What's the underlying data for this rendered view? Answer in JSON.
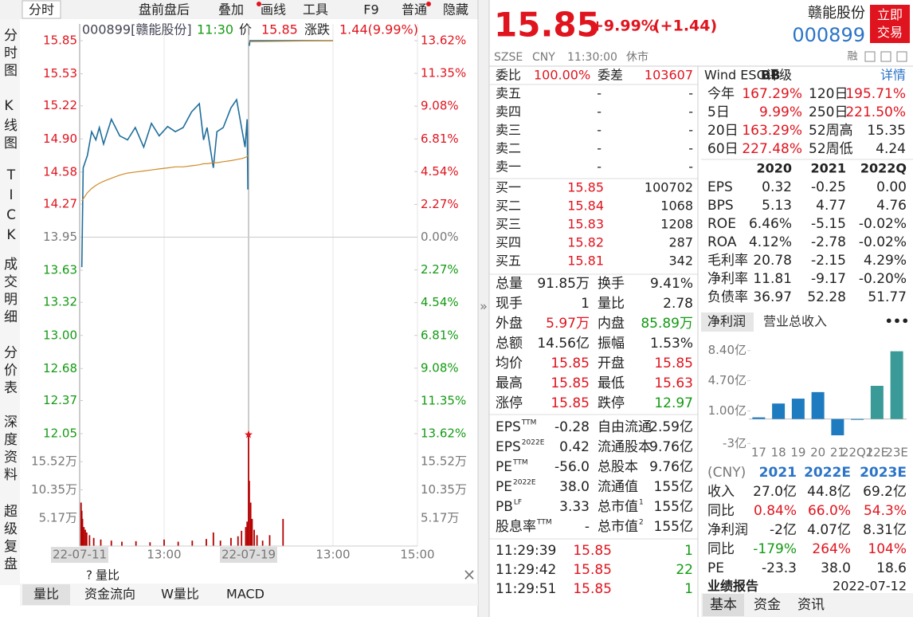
{
  "toolbar": {
    "tab": "分时",
    "buttons": [
      "盘前盘后",
      "叠加",
      "画线",
      "工具",
      "F9",
      "普通",
      "隐藏"
    ]
  },
  "side_tabs": [
    "分时图",
    "K线图",
    "TICK",
    "成交明细",
    "分价表",
    "深度资料",
    "超级复盘"
  ],
  "chart_header": {
    "code": "000899[赣能股份]",
    "time": "11:30",
    "price_label": "价",
    "price": "15.85",
    "change_label": "涨跌",
    "change": "1.44(9.99%)"
  },
  "chart_data": [
    {
      "type": "line",
      "xlim": [
        0,
        480
      ],
      "ylim": [
        12.05,
        15.85
      ],
      "yticks": [
        15.85,
        15.53,
        15.22,
        {
          "value": 14.9,
          "label": "14.90"
        },
        14.58,
        14.27,
        13.95,
        13.63,
        13.32,
        {
          "value": 13,
          "label": "13.00"
        },
        12.68,
        12.37,
        12.05
      ],
      "y2lim": [
        -13.62,
        13.62
      ],
      "y2ticks": [
        {
          "value": 13.62,
          "label": "13.62%"
        },
        {
          "value": 11.35,
          "label": "11.35%"
        },
        {
          "value": 9.08,
          "label": "9.08%"
        },
        {
          "value": 6.81,
          "label": "6.81%"
        },
        {
          "value": 4.54,
          "label": "4.54%"
        },
        {
          "value": 2.27,
          "label": "2.27%"
        },
        {
          "value": 0,
          "label": "0.00%"
        },
        {
          "value": -2.27,
          "label": "2.27%"
        },
        {
          "value": -4.54,
          "label": "4.54%"
        },
        {
          "value": -6.81,
          "label": "6.81%"
        },
        {
          "value": -9.08,
          "label": "9.08%"
        },
        {
          "value": -11.35,
          "label": "11.35%"
        },
        {
          "value": -13.62,
          "label": "13.62%"
        }
      ],
      "xticks": [
        {
          "value": 0,
          "label": "22-07-11"
        },
        {
          "value": 120,
          "label": "13:00"
        },
        {
          "value": 240,
          "label": "22-07-19"
        },
        {
          "value": 360,
          "label": "13:00"
        },
        {
          "value": 480,
          "label": "15:00"
        }
      ],
      "x": [
        3,
        5,
        11,
        17,
        23,
        28,
        34,
        45,
        57,
        68,
        79,
        91,
        102,
        113,
        125,
        136,
        147,
        159,
        170,
        176,
        181,
        190,
        195,
        204,
        215,
        223,
        230,
        235,
        238,
        239,
        240,
        241,
        242,
        360
      ],
      "series": [
        {
          "color": "#1f6e9c",
          "values": [
            13.66,
            14.62,
            14.74,
            14.97,
            14.89,
            15.01,
            14.85,
            15.09,
            14.93,
            14.89,
            15.01,
            14.82,
            15.05,
            14.93,
            15.02,
            14.97,
            15.01,
            15.16,
            15.24,
            14.89,
            15.01,
            14.62,
            14.97,
            15.01,
            15.2,
            15.28,
            15.01,
            14.82,
            15.09,
            14.41,
            null,
            15.8,
            15.85,
            15.85
          ]
        },
        {
          "color": "#d08a2a",
          "values": [
            14.3,
            14.32,
            14.38,
            14.42,
            14.45,
            14.47,
            14.49,
            14.52,
            14.55,
            14.57,
            14.58,
            14.59,
            14.6,
            14.61,
            14.62,
            14.63,
            14.63,
            14.64,
            14.65,
            14.66,
            14.66,
            14.67,
            14.67,
            14.68,
            14.69,
            14.7,
            14.71,
            14.72,
            14.73,
            14.74,
            null,
            15.84,
            15.84,
            15.85
          ]
        }
      ]
    },
    {
      "type": "bar",
      "xlim": [
        0,
        480
      ],
      "ylim": [
        0,
        20.69
      ],
      "color": "#b40000",
      "yticks": [
        {
          "value": 15.52,
          "label": "15.52万"
        },
        {
          "value": 10.35,
          "label": "10.35万"
        },
        {
          "value": 5.17,
          "label": "5.17万"
        }
      ],
      "x": [
        2,
        3,
        4,
        6,
        8,
        10,
        14,
        20,
        30,
        45,
        60,
        80,
        100,
        120,
        140,
        160,
        180,
        190,
        200,
        215,
        225,
        230,
        236,
        238,
        240,
        241,
        243,
        245,
        248,
        252,
        260,
        270,
        289
      ],
      "values": [
        8,
        6.5,
        5,
        3.5,
        3,
        2.5,
        2,
        1.5,
        1.2,
        1,
        0.8,
        0.9,
        0.7,
        1.2,
        0.8,
        1,
        1.3,
        2.5,
        1,
        1.5,
        1.8,
        2.8,
        3.5,
        4.5,
        20.6,
        12,
        8,
        5,
        3,
        2,
        1,
        2,
        5
      ]
    },
    {
      "type": "bar",
      "categories": [
        "17",
        "18",
        "19",
        "20",
        "21",
        "22Q1",
        "22E",
        "23E"
      ],
      "values": [
        0.2,
        1.9,
        2.5,
        3.3,
        -2,
        -0.1,
        4.07,
        8.31
      ],
      "colors": [
        "#1f7bbf",
        "#1f7bbf",
        "#1f7bbf",
        "#1f7bbf",
        "#1f7bbf",
        "#1f7bbf",
        "#3a9a98",
        "#3a9a98"
      ],
      "ylim": [
        -3.85,
        9.35
      ],
      "yticks": [
        {
          "value": 8.4,
          "label": "8.40亿"
        },
        {
          "value": 4.7,
          "label": "4.70亿"
        },
        {
          "value": 1,
          "label": "1.00亿"
        },
        {
          "value": -3,
          "label": "-3亿"
        }
      ]
    }
  ],
  "left_bottom": {
    "help": "?",
    "label": "量比",
    "close": "×",
    "tabs": [
      "量比",
      "资金流向",
      "W量比",
      "MACD"
    ]
  },
  "expand": "»",
  "quote": {
    "price": "15.85",
    "change_pct": "+9.99%",
    "change": "(+1.44)",
    "name": "赣能股份",
    "code": "000899",
    "trade_button": "立即交易",
    "exchange": "SZSE",
    "currency": "CNY",
    "time": "11:30:00",
    "status": "休市",
    "margin": "融"
  },
  "order_book": {
    "ratio_label": "委比",
    "ratio": "100.00%",
    "diff_label": "委差",
    "diff": "103607",
    "asks": [
      [
        "卖五",
        "-",
        "-"
      ],
      [
        "卖四",
        "-",
        "-"
      ],
      [
        "卖三",
        "-",
        "-"
      ],
      [
        "卖二",
        "-",
        "-"
      ],
      [
        "卖一",
        "-",
        "-"
      ]
    ],
    "bids": [
      [
        "买一",
        "15.85",
        "100702"
      ],
      [
        "买二",
        "15.84",
        "1068"
      ],
      [
        "买三",
        "15.83",
        "1208"
      ],
      [
        "买四",
        "15.82",
        "287"
      ],
      [
        "买五",
        "15.81",
        "342"
      ]
    ]
  },
  "stats": [
    [
      "总量",
      "91.85万",
      "换手",
      "9.41%"
    ],
    [
      "现手",
      "1",
      "量比",
      "2.78"
    ],
    [
      "外盘",
      "5.97万",
      "内盘",
      "85.89万"
    ],
    [
      "总额",
      "14.56亿",
      "振幅",
      "1.53%"
    ],
    [
      "均价",
      "15.85",
      "开盘",
      "15.85"
    ],
    [
      "最高",
      "15.85",
      "最低",
      "15.63"
    ],
    [
      "涨停",
      "15.85",
      "跌停",
      "12.97"
    ]
  ],
  "valuation": [
    {
      "label": "EPS",
      "sup": "TTM",
      "value": "-0.28",
      "label2": "自由流通",
      "value2": "2.59亿"
    },
    {
      "label": "EPS",
      "sup": "2022E",
      "value": "0.42",
      "label2": "流通股本",
      "value2": "9.76亿"
    },
    {
      "label": "PE",
      "sup": "TTM",
      "value": "-56.0",
      "label2": "总股本",
      "value2": "9.76亿"
    },
    {
      "label": "PE",
      "sup": "2022E",
      "value": "38.0",
      "label2": "流通值",
      "value2": "155亿"
    },
    {
      "label": "PB",
      "sup": "LF",
      "value": "3.33",
      "label2": "总市值",
      "sup2": "1",
      "value2": "155亿"
    },
    {
      "label": "股息率",
      "sup": "TTM",
      "value": "-",
      "label2": "总市值",
      "sup2": "2",
      "value2": "155亿"
    }
  ],
  "trades": [
    [
      "11:29:39",
      "15.85",
      "1"
    ],
    [
      "11:29:42",
      "15.85",
      "22"
    ],
    [
      "11:29:51",
      "15.85",
      "1"
    ]
  ],
  "esg": {
    "title": "Wind ESG评级",
    "rating": "BB",
    "detail": "详情"
  },
  "returns": [
    [
      "今年",
      "167.29%",
      "120日",
      "195.71%"
    ],
    [
      "5日",
      "9.99%",
      "250日",
      "221.50%"
    ],
    [
      "20日",
      "163.29%",
      "52周高",
      "15.35"
    ],
    [
      "60日",
      "227.48%",
      "52周低",
      "4.24"
    ]
  ],
  "financials": {
    "columns": [
      "2020",
      "2021",
      "2022Q"
    ],
    "rows": [
      [
        "EPS",
        "0.32",
        "-0.25",
        "0.00"
      ],
      [
        "BPS",
        "5.13",
        "4.77",
        "4.76"
      ],
      [
        "ROE",
        "6.46%",
        "-5.15",
        "-0.02%"
      ],
      [
        "ROA",
        "4.12%",
        "-2.78",
        "-0.02%"
      ],
      [
        "毛利率",
        "20.78",
        "-2.15",
        "4.29%"
      ],
      [
        "净利率",
        "11.81",
        "-9.17",
        "-0.20%"
      ],
      [
        "负债率",
        "36.97",
        "52.28",
        "51.77"
      ]
    ]
  },
  "profit_tabs": [
    "净利润",
    "营业总收入"
  ],
  "more": "•••",
  "forecast": {
    "columns": [
      "(CNY)",
      "2021",
      "2022E",
      "2023E"
    ],
    "rows": [
      [
        "收入",
        "27.0亿",
        "44.8亿",
        "69.2亿"
      ],
      [
        "同比",
        "0.84%",
        "66.0%",
        "54.3%"
      ],
      [
        "净利润",
        "-2亿",
        "4.07亿",
        "8.31亿"
      ],
      [
        "同比",
        "-179%",
        "264%",
        "104%"
      ],
      [
        "PE",
        "-23.3",
        "38.0",
        "18.6"
      ]
    ],
    "report": "业绩报告",
    "report_date": "2022-07-12"
  },
  "bottom_tabs": [
    "基本",
    "资金",
    "资讯"
  ]
}
